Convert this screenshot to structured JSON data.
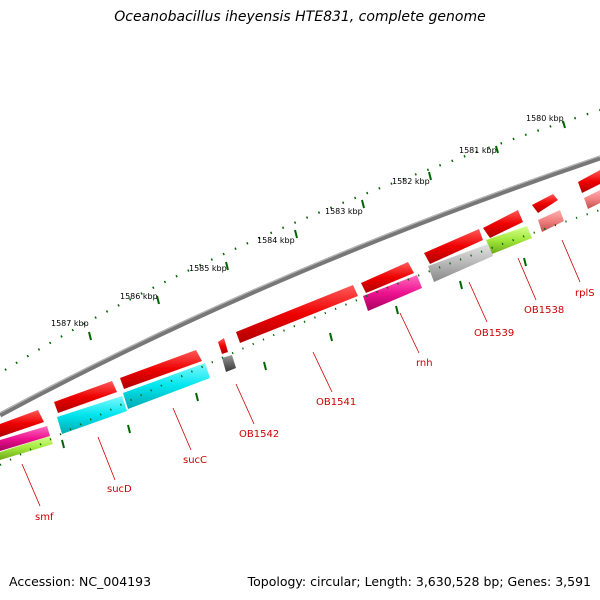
{
  "title": "Oceanobacillus iheyensis HTE831, complete genome",
  "accession_text": "Accession: NC_004193",
  "topology_text": "Topology: circular; Length: 3,630,528 bp; Genes: 3,591",
  "kbp_labels": [
    "1580 kbp",
    "1581 kbp",
    "1582 kbp",
    "1583 kbp",
    "1584 kbp",
    "1585 kbp",
    "1586 kbp",
    "1587 kbp"
  ],
  "gene_labels": [
    "rplS",
    "OB1538",
    "OB1539",
    "rnh",
    "OB1541",
    "OB1542",
    "sucC",
    "sucD",
    "smf"
  ],
  "colors": {
    "backbone": "#808080",
    "gene": "#ee0000",
    "cds_red": "#ff2020",
    "cds_cyan": "#00e5ee",
    "cds_magenta": "#ee1290",
    "cds_lime": "#a2e83a",
    "cds_gray": "#b8b8b8",
    "cds_pink": "#f08080",
    "cds_dark": "#666666",
    "tick": "#006400",
    "label": "#cc0000"
  }
}
